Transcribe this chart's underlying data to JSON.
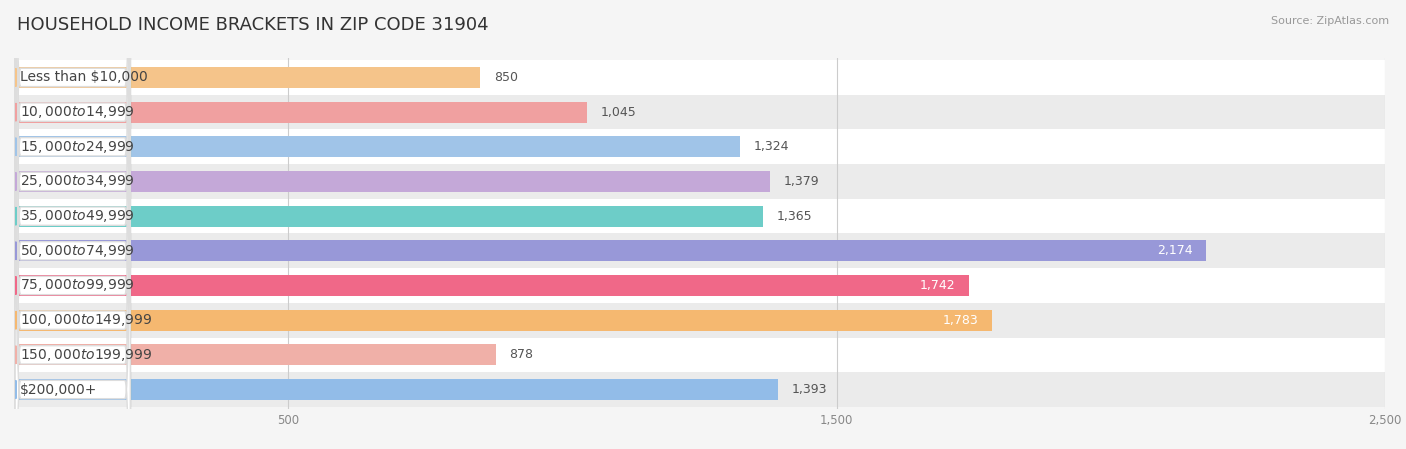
{
  "title": "HOUSEHOLD INCOME BRACKETS IN ZIP CODE 31904",
  "source": "Source: ZipAtlas.com",
  "categories": [
    "Less than $10,000",
    "$10,000 to $14,999",
    "$15,000 to $24,999",
    "$25,000 to $34,999",
    "$35,000 to $49,999",
    "$50,000 to $74,999",
    "$75,000 to $99,999",
    "$100,000 to $149,999",
    "$150,000 to $199,999",
    "$200,000+"
  ],
  "values": [
    850,
    1045,
    1324,
    1379,
    1365,
    2174,
    1742,
    1783,
    878,
    1393
  ],
  "bar_colors": [
    "#f5c48a",
    "#f0a0a0",
    "#a0c4e8",
    "#c4a8d8",
    "#6dcdc8",
    "#9898d8",
    "#f06888",
    "#f5b870",
    "#f0b0a8",
    "#92bce8"
  ],
  "bg_color": "#f5f5f5",
  "row_colors_even": "#ffffff",
  "row_colors_odd": "#ebebeb",
  "xlim_max": 2500,
  "xticks": [
    500,
    1500,
    2500
  ],
  "title_fontsize": 13,
  "label_fontsize": 10,
  "value_fontsize": 9,
  "source_fontsize": 8
}
